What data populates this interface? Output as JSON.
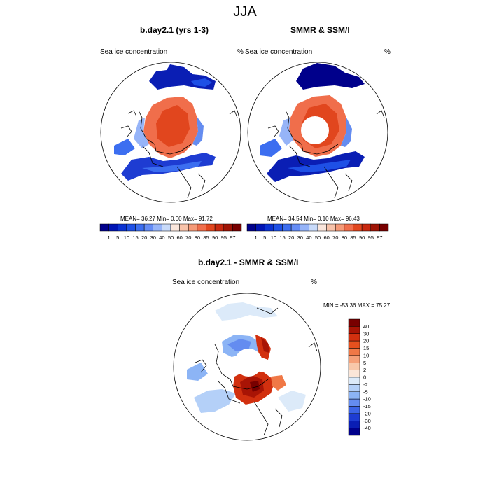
{
  "title": "JJA",
  "panels": [
    {
      "title": "b.day2.1 (yrs 1-3)",
      "variable": "Sea ice concentration",
      "units": "%",
      "stats": "MEAN=  36.27  Min=   0.00  Max=  91.72"
    },
    {
      "title": "SMMR & SSM/I",
      "variable": "Sea ice concentration",
      "units": "%",
      "stats": "MEAN=  34.54  Min=   0.10  Max=  96.43"
    },
    {
      "title": "b.day2.1 - SMMR & SSM/I",
      "variable": "Sea ice concentration",
      "units": "%",
      "stats": "MIN = -53.36 MAX =  75.27"
    }
  ],
  "colorbar_top": {
    "labels": [
      "1",
      "5",
      "10",
      "15",
      "20",
      "30",
      "40",
      "50",
      "60",
      "70",
      "80",
      "85",
      "90",
      "95",
      "97"
    ],
    "colors": [
      "#00008b",
      "#0014b4",
      "#0a32d2",
      "#1e50e6",
      "#3c6ef0",
      "#648cf5",
      "#96b4f8",
      "#c8daf9",
      "#fae6dc",
      "#f8c3aa",
      "#f59a78",
      "#f06e4b",
      "#e1461e",
      "#c8280f",
      "#a01405",
      "#780000"
    ]
  },
  "colorbar_diff": {
    "labels": [
      "40",
      "30",
      "20",
      "15",
      "10",
      "5",
      "2",
      "0",
      "-2",
      "-5",
      "-10",
      "-15",
      "-20",
      "-30",
      "-40"
    ],
    "colors": [
      "#780000",
      "#a81405",
      "#d2300f",
      "#e6501e",
      "#f07846",
      "#f5a078",
      "#f8c8aa",
      "#fbe6d8",
      "#dceaf9",
      "#b4d0f8",
      "#8cb4f5",
      "#648cf0",
      "#3c64e6",
      "#1e3cd2",
      "#0a1eb4",
      "#00008b"
    ]
  }
}
